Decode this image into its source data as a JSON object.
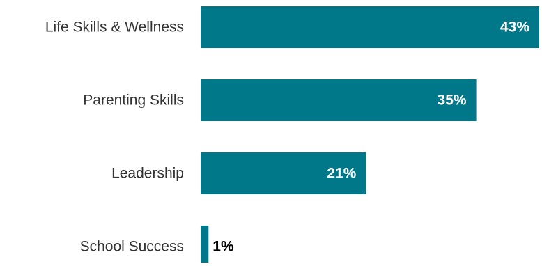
{
  "chart_data": {
    "type": "bar",
    "orientation": "horizontal",
    "categories": [
      "Life Skills & Wellness",
      "Parenting Skills",
      "Leadership",
      "School Success"
    ],
    "values": [
      43,
      35,
      21,
      1
    ],
    "data_labels": [
      "43%",
      "35%",
      "21%",
      "1%"
    ],
    "title": "",
    "xlabel": "",
    "ylabel": "",
    "xlim": [
      0,
      43
    ],
    "grid": false,
    "legend": "none",
    "bar_color": "#00788A",
    "inside_label_color": "#ffffff",
    "outside_label_color": "#000000",
    "category_label_color": "#333333"
  }
}
